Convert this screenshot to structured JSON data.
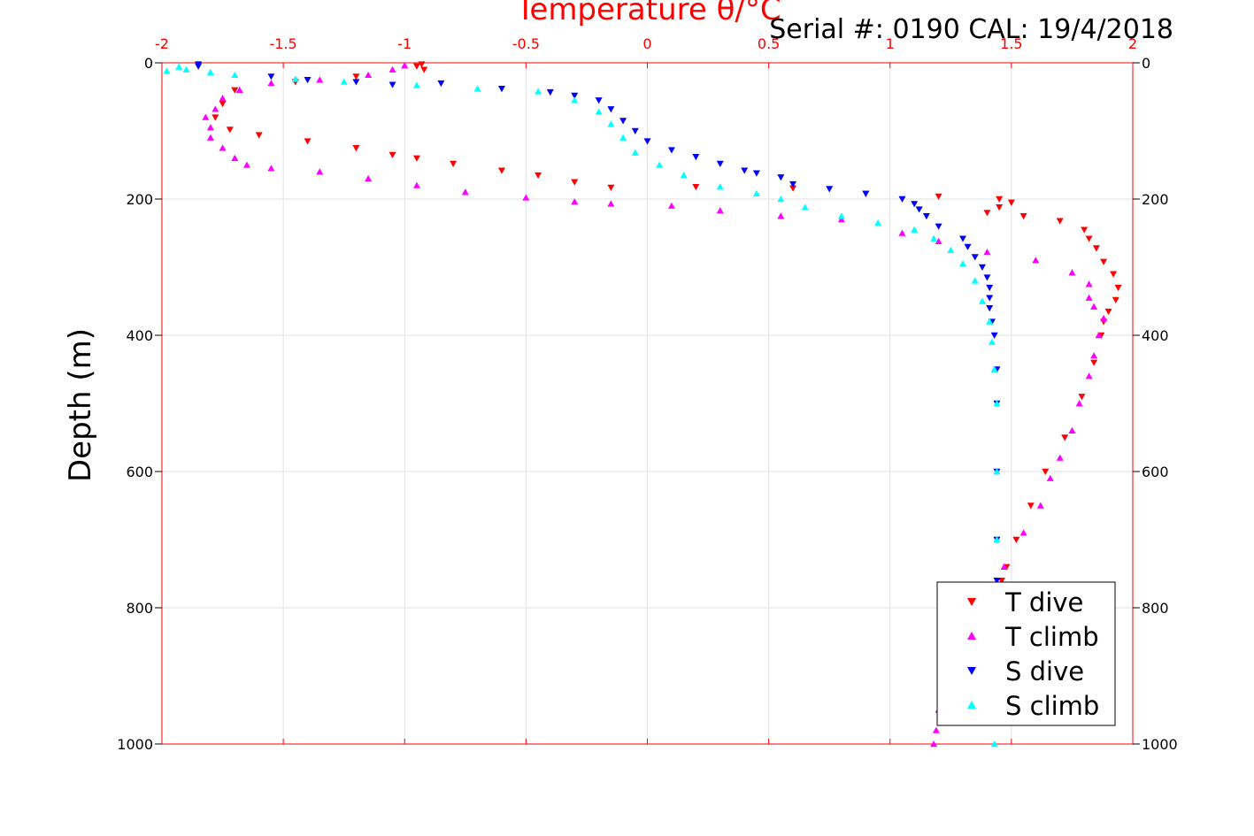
{
  "chart_data": {
    "type": "scatter",
    "title": "Temperature θ/°C",
    "subtitle": "Serial #: 0190  CAL: 19/4/2018",
    "xlabel": "Temperature θ/°C",
    "ylabel": "Depth (m)",
    "xlim": [
      -2,
      2
    ],
    "ylim": [
      0,
      1000
    ],
    "y_reversed": true,
    "x_axis_position": "top",
    "x_ticks": [
      "-2",
      "-1.5",
      "-1",
      "-0.5",
      "0",
      "0.5",
      "1",
      "1.5",
      "2"
    ],
    "y_ticks": [
      "0",
      "200",
      "400",
      "600",
      "800",
      "1000"
    ],
    "grid": true,
    "legend_position": "bottom-right",
    "series": [
      {
        "name": "T dive",
        "color": "#ff0000",
        "marker": "triangle-down",
        "points": [
          [
            -0.93,
            2
          ],
          [
            -0.95,
            5
          ],
          [
            -0.92,
            10
          ],
          [
            -1.2,
            20
          ],
          [
            -1.45,
            28
          ],
          [
            -1.7,
            40
          ],
          [
            -1.75,
            60
          ],
          [
            -1.78,
            80
          ],
          [
            -1.72,
            98
          ],
          [
            -1.6,
            106
          ],
          [
            -1.4,
            115
          ],
          [
            -1.2,
            125
          ],
          [
            -1.05,
            135
          ],
          [
            -0.95,
            140
          ],
          [
            -0.8,
            148
          ],
          [
            -0.6,
            158
          ],
          [
            -0.45,
            165
          ],
          [
            -0.3,
            175
          ],
          [
            -0.15,
            183
          ],
          [
            0.2,
            182
          ],
          [
            0.6,
            184
          ],
          [
            0.9,
            192
          ],
          [
            1.2,
            196
          ],
          [
            1.45,
            200
          ],
          [
            1.5,
            205
          ],
          [
            1.45,
            212
          ],
          [
            1.4,
            220
          ],
          [
            1.55,
            225
          ],
          [
            1.7,
            232
          ],
          [
            1.8,
            245
          ],
          [
            1.82,
            258
          ],
          [
            1.85,
            272
          ],
          [
            1.88,
            292
          ],
          [
            1.92,
            310
          ],
          [
            1.94,
            330
          ],
          [
            1.93,
            348
          ],
          [
            1.9,
            365
          ],
          [
            1.88,
            380
          ],
          [
            1.87,
            400
          ],
          [
            1.84,
            440
          ],
          [
            1.79,
            490
          ],
          [
            1.72,
            550
          ],
          [
            1.64,
            600
          ],
          [
            1.58,
            650
          ],
          [
            1.52,
            700
          ],
          [
            1.48,
            740
          ],
          [
            1.46,
            760
          ]
        ]
      },
      {
        "name": "T climb",
        "color": "#ff00ff",
        "marker": "triangle-up",
        "points": [
          [
            1.18,
            1000
          ],
          [
            1.19,
            980
          ],
          [
            1.2,
            950
          ],
          [
            1.22,
            920
          ],
          [
            1.26,
            880
          ],
          [
            1.3,
            850
          ],
          [
            1.35,
            820
          ],
          [
            1.4,
            780
          ],
          [
            1.47,
            740
          ],
          [
            1.55,
            690
          ],
          [
            1.62,
            650
          ],
          [
            1.66,
            610
          ],
          [
            1.7,
            580
          ],
          [
            1.75,
            540
          ],
          [
            1.78,
            500
          ],
          [
            1.82,
            460
          ],
          [
            1.84,
            430
          ],
          [
            1.86,
            400
          ],
          [
            1.88,
            375
          ],
          [
            1.84,
            358
          ],
          [
            1.82,
            345
          ],
          [
            1.82,
            325
          ],
          [
            1.75,
            308
          ],
          [
            1.6,
            290
          ],
          [
            1.4,
            278
          ],
          [
            1.2,
            262
          ],
          [
            1.05,
            250
          ],
          [
            0.8,
            230
          ],
          [
            0.55,
            225
          ],
          [
            0.3,
            217
          ],
          [
            0.1,
            210
          ],
          [
            -0.15,
            207
          ],
          [
            -0.3,
            204
          ],
          [
            -0.5,
            198
          ],
          [
            -0.75,
            190
          ],
          [
            -0.95,
            180
          ],
          [
            -1.15,
            170
          ],
          [
            -1.35,
            160
          ],
          [
            -1.55,
            155
          ],
          [
            -1.65,
            150
          ],
          [
            -1.7,
            140
          ],
          [
            -1.75,
            125
          ],
          [
            -1.8,
            110
          ],
          [
            -1.8,
            95
          ],
          [
            -1.82,
            80
          ],
          [
            -1.78,
            68
          ],
          [
            -1.75,
            52
          ],
          [
            -1.68,
            40
          ],
          [
            -1.55,
            30
          ],
          [
            -1.35,
            25
          ],
          [
            -1.15,
            18
          ],
          [
            -1.05,
            10
          ],
          [
            -1.0,
            4
          ]
        ]
      },
      {
        "name": "S dive",
        "color": "#0000ff",
        "marker": "triangle-down",
        "points": [
          [
            -1.85,
            2
          ],
          [
            -1.85,
            5
          ],
          [
            -1.55,
            20
          ],
          [
            -1.4,
            25
          ],
          [
            -1.2,
            28
          ],
          [
            -1.05,
            32
          ],
          [
            -0.85,
            30
          ],
          [
            -0.6,
            38
          ],
          [
            -0.4,
            43
          ],
          [
            -0.3,
            48
          ],
          [
            -0.2,
            55
          ],
          [
            -0.15,
            68
          ],
          [
            -0.1,
            85
          ],
          [
            -0.05,
            100
          ],
          [
            0.0,
            115
          ],
          [
            0.1,
            128
          ],
          [
            0.2,
            138
          ],
          [
            0.3,
            148
          ],
          [
            0.4,
            158
          ],
          [
            0.45,
            162
          ],
          [
            0.55,
            168
          ],
          [
            0.6,
            178
          ],
          [
            0.75,
            185
          ],
          [
            0.9,
            192
          ],
          [
            1.05,
            200
          ],
          [
            1.1,
            207
          ],
          [
            1.12,
            215
          ],
          [
            1.15,
            225
          ],
          [
            1.2,
            240
          ],
          [
            1.3,
            258
          ],
          [
            1.32,
            270
          ],
          [
            1.35,
            285
          ],
          [
            1.38,
            300
          ],
          [
            1.4,
            315
          ],
          [
            1.41,
            330
          ],
          [
            1.41,
            345
          ],
          [
            1.41,
            360
          ],
          [
            1.42,
            380
          ],
          [
            1.43,
            400
          ],
          [
            1.44,
            450
          ],
          [
            1.44,
            500
          ],
          [
            1.44,
            600
          ],
          [
            1.44,
            700
          ],
          [
            1.44,
            760
          ]
        ]
      },
      {
        "name": "S climb",
        "color": "#00ffff",
        "marker": "triangle-up",
        "points": [
          [
            1.43,
            1000
          ],
          [
            1.43,
            950
          ],
          [
            1.44,
            900
          ],
          [
            1.44,
            850
          ],
          [
            1.44,
            800
          ],
          [
            1.44,
            700
          ],
          [
            1.44,
            600
          ],
          [
            1.44,
            500
          ],
          [
            1.43,
            450
          ],
          [
            1.42,
            410
          ],
          [
            1.41,
            380
          ],
          [
            1.38,
            350
          ],
          [
            1.35,
            320
          ],
          [
            1.3,
            295
          ],
          [
            1.25,
            275
          ],
          [
            1.18,
            258
          ],
          [
            1.1,
            245
          ],
          [
            0.95,
            235
          ],
          [
            0.8,
            225
          ],
          [
            0.65,
            212
          ],
          [
            0.55,
            200
          ],
          [
            0.45,
            192
          ],
          [
            0.3,
            182
          ],
          [
            0.15,
            165
          ],
          [
            0.05,
            150
          ],
          [
            -0.05,
            132
          ],
          [
            -0.1,
            110
          ],
          [
            -0.15,
            90
          ],
          [
            -0.2,
            72
          ],
          [
            -0.3,
            55
          ],
          [
            -0.45,
            42
          ],
          [
            -0.7,
            38
          ],
          [
            -0.95,
            33
          ],
          [
            -1.25,
            28
          ],
          [
            -1.45,
            24
          ],
          [
            -1.7,
            18
          ],
          [
            -1.8,
            14
          ],
          [
            -1.9,
            10
          ],
          [
            -1.98,
            12
          ],
          [
            -1.93,
            6
          ]
        ]
      }
    ]
  }
}
